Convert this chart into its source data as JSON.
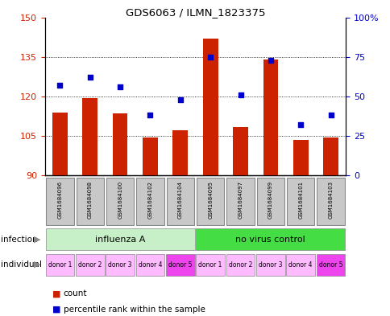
{
  "title": "GDS6063 / ILMN_1823375",
  "samples": [
    "GSM1684096",
    "GSM1684098",
    "GSM1684100",
    "GSM1684102",
    "GSM1684104",
    "GSM1684095",
    "GSM1684097",
    "GSM1684099",
    "GSM1684101",
    "GSM1684103"
  ],
  "counts": [
    114,
    119.5,
    113.5,
    104.5,
    107,
    142,
    108.5,
    134,
    103.5,
    104.5
  ],
  "percentiles": [
    57,
    62,
    56,
    38,
    48,
    75,
    51,
    73,
    32,
    38
  ],
  "ylim_left": [
    90,
    150
  ],
  "ylim_right": [
    0,
    100
  ],
  "yticks_left": [
    90,
    105,
    120,
    135,
    150
  ],
  "yticks_right": [
    0,
    25,
    50,
    75,
    100
  ],
  "infection_groups": [
    {
      "label": "influenza A",
      "start": 0,
      "end": 5,
      "color": "#C8F0C8"
    },
    {
      "label": "no virus control",
      "start": 5,
      "end": 10,
      "color": "#44DD44"
    }
  ],
  "individuals": [
    "donor 1",
    "donor 2",
    "donor 3",
    "donor 4",
    "donor 5",
    "donor 1",
    "donor 2",
    "donor 3",
    "donor 4",
    "donor 5"
  ],
  "ind_colors": [
    "#FFBBFF",
    "#FFBBFF",
    "#FFBBFF",
    "#FFBBFF",
    "#EE44EE",
    "#FFBBFF",
    "#FFBBFF",
    "#FFBBFF",
    "#FFBBFF",
    "#EE44EE"
  ],
  "bar_color": "#CC2200",
  "dot_color": "#0000CC",
  "bg_color": "#FFFFFF",
  "axis_color_left": "#CC2200",
  "axis_color_right": "#0000CC",
  "sample_bg": "#C8C8C8",
  "legend_count_color": "#CC2200",
  "legend_pct_color": "#0000CC",
  "grid_color": "#000000"
}
